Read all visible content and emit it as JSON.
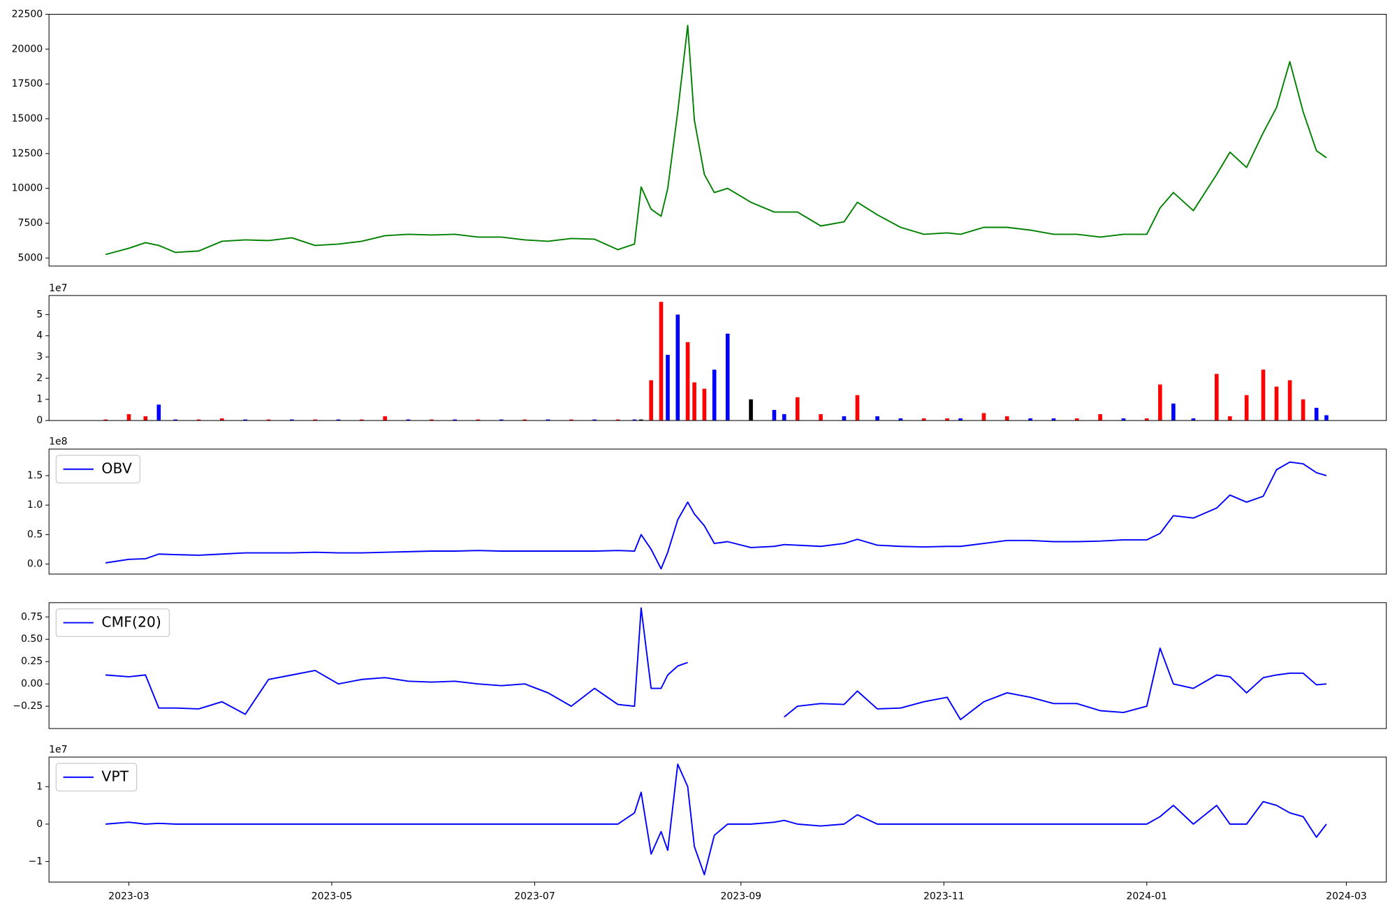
{
  "chart_data": [
    {
      "type": "line",
      "x": [
        "2023-02-22",
        "2023-03-01",
        "2023-03-06",
        "2023-03-10",
        "2023-03-15",
        "2023-03-22",
        "2023-03-29",
        "2023-04-05",
        "2023-04-12",
        "2023-04-19",
        "2023-04-26",
        "2023-05-03",
        "2023-05-10",
        "2023-05-17",
        "2023-05-24",
        "2023-05-31",
        "2023-06-07",
        "2023-06-14",
        "2023-06-21",
        "2023-06-28",
        "2023-07-05",
        "2023-07-12",
        "2023-07-19",
        "2023-07-26",
        "2023-07-31",
        "2023-08-02",
        "2023-08-05",
        "2023-08-08",
        "2023-08-10",
        "2023-08-13",
        "2023-08-16",
        "2023-08-18",
        "2023-08-21",
        "2023-08-24",
        "2023-08-28",
        "2023-09-04",
        "2023-09-11",
        "2023-09-14",
        "2023-09-18",
        "2023-09-25",
        "2023-10-02",
        "2023-10-06",
        "2023-10-12",
        "2023-10-19",
        "2023-10-26",
        "2023-11-02",
        "2023-11-06",
        "2023-11-13",
        "2023-11-20",
        "2023-11-27",
        "2023-12-04",
        "2023-12-11",
        "2023-12-18",
        "2023-12-25",
        "2024-01-01",
        "2024-01-05",
        "2024-01-09",
        "2024-01-15",
        "2024-01-22",
        "2024-01-26",
        "2024-01-31",
        "2024-02-05",
        "2024-02-09",
        "2024-02-13",
        "2024-02-17",
        "2024-02-21",
        "2024-02-24"
      ],
      "series": [
        {
          "color": "green",
          "values": [
            5250,
            5700,
            6100,
            5900,
            5400,
            5500,
            6200,
            6300,
            6250,
            6450,
            5900,
            6000,
            6200,
            6600,
            6700,
            6650,
            6700,
            6500,
            6500,
            6300,
            6200,
            6400,
            6350,
            5600,
            6000,
            10100,
            8500,
            8000,
            10000,
            15500,
            21700,
            14900,
            11000,
            9700,
            10000,
            9000,
            8300,
            8300,
            8300,
            7300,
            7600,
            9000,
            8100,
            7200,
            6700,
            6800,
            6700,
            7200,
            7200,
            7000,
            6700,
            6700,
            6500,
            6700,
            6700,
            8600,
            9700,
            8400,
            11000,
            12600,
            11500,
            14000,
            15800,
            19100,
            15500,
            12700,
            12200
          ]
        }
      ],
      "xlim": [
        "2023-02-05",
        "2024-03-13"
      ],
      "ylim": [
        4420,
        22500
      ],
      "yticks": [
        5000,
        7500,
        10000,
        12500,
        15000,
        17500,
        20000,
        22500
      ]
    },
    {
      "type": "bar",
      "x": [
        "2023-02-22",
        "2023-03-01",
        "2023-03-06",
        "2023-03-10",
        "2023-03-15",
        "2023-03-22",
        "2023-03-29",
        "2023-04-05",
        "2023-04-12",
        "2023-04-19",
        "2023-04-26",
        "2023-05-03",
        "2023-05-10",
        "2023-05-17",
        "2023-05-24",
        "2023-05-31",
        "2023-06-07",
        "2023-06-14",
        "2023-06-21",
        "2023-06-28",
        "2023-07-05",
        "2023-07-12",
        "2023-07-19",
        "2023-07-26",
        "2023-07-31",
        "2023-08-02",
        "2023-08-05",
        "2023-08-08",
        "2023-08-10",
        "2023-08-13",
        "2023-08-16",
        "2023-08-18",
        "2023-08-21",
        "2023-08-24",
        "2023-08-28",
        "2023-09-04",
        "2023-09-11",
        "2023-09-14",
        "2023-09-18",
        "2023-09-25",
        "2023-10-02",
        "2023-10-06",
        "2023-10-12",
        "2023-10-19",
        "2023-10-26",
        "2023-11-02",
        "2023-11-06",
        "2023-11-13",
        "2023-11-20",
        "2023-11-27",
        "2023-12-04",
        "2023-12-11",
        "2023-12-18",
        "2023-12-25",
        "2024-01-01",
        "2024-01-05",
        "2024-01-09",
        "2024-01-15",
        "2024-01-22",
        "2024-01-26",
        "2024-01-31",
        "2024-02-05",
        "2024-02-09",
        "2024-02-13",
        "2024-02-17",
        "2024-02-21",
        "2024-02-24"
      ],
      "values": [
        0.05,
        0.3,
        0.2,
        0.75,
        0.05,
        0.05,
        0.1,
        0.05,
        0.05,
        0.05,
        0.05,
        0.05,
        0.05,
        0.2,
        0.05,
        0.05,
        0.05,
        0.05,
        0.05,
        0.05,
        0.05,
        0.05,
        0.05,
        0.05,
        0.05,
        0.05,
        1.9,
        5.6,
        3.1,
        5.0,
        3.7,
        1.8,
        1.5,
        2.4,
        4.1,
        1.0,
        0.5,
        0.3,
        1.1,
        0.3,
        0.2,
        1.2,
        0.2,
        0.1,
        0.1,
        0.1,
        0.1,
        0.35,
        0.2,
        0.1,
        0.1,
        0.1,
        0.3,
        0.1,
        0.1,
        1.7,
        0.8,
        0.1,
        2.2,
        0.2,
        1.2,
        2.4,
        1.6,
        1.9,
        1.0,
        0.6,
        0.25
      ],
      "colors": [
        "red",
        "red",
        "red",
        "blue",
        "blue",
        "red",
        "red",
        "blue",
        "red",
        "blue",
        "red",
        "blue",
        "red",
        "red",
        "blue",
        "red",
        "blue",
        "red",
        "blue",
        "red",
        "blue",
        "red",
        "blue",
        "red",
        "blue",
        "black",
        "red",
        "red",
        "blue",
        "blue",
        "red",
        "red",
        "red",
        "blue",
        "blue",
        "black",
        "blue",
        "blue",
        "red",
        "red",
        "blue",
        "red",
        "blue",
        "blue",
        "red",
        "red",
        "blue",
        "red",
        "red",
        "blue",
        "blue",
        "red",
        "red",
        "blue",
        "red",
        "red",
        "blue",
        "blue",
        "red",
        "red",
        "red",
        "red",
        "red",
        "red",
        "red",
        "blue",
        "blue"
      ],
      "xlim": [
        "2023-02-05",
        "2024-03-13"
      ],
      "ylim": [
        0,
        5.9
      ],
      "yticks": [
        0,
        1,
        2,
        3,
        4,
        5
      ],
      "offset_label": "1e7"
    },
    {
      "type": "line",
      "x": [
        "2023-02-22",
        "2023-03-01",
        "2023-03-06",
        "2023-03-10",
        "2023-03-15",
        "2023-03-22",
        "2023-03-29",
        "2023-04-05",
        "2023-04-12",
        "2023-04-19",
        "2023-04-26",
        "2023-05-03",
        "2023-05-10",
        "2023-05-17",
        "2023-05-24",
        "2023-05-31",
        "2023-06-07",
        "2023-06-14",
        "2023-06-21",
        "2023-06-28",
        "2023-07-05",
        "2023-07-12",
        "2023-07-19",
        "2023-07-26",
        "2023-07-31",
        "2023-08-02",
        "2023-08-05",
        "2023-08-08",
        "2023-08-10",
        "2023-08-13",
        "2023-08-16",
        "2023-08-18",
        "2023-08-21",
        "2023-08-24",
        "2023-08-28",
        "2023-09-04",
        "2023-09-11",
        "2023-09-14",
        "2023-09-18",
        "2023-09-25",
        "2023-10-02",
        "2023-10-06",
        "2023-10-12",
        "2023-10-19",
        "2023-10-26",
        "2023-11-02",
        "2023-11-06",
        "2023-11-13",
        "2023-11-20",
        "2023-11-27",
        "2023-12-04",
        "2023-12-11",
        "2023-12-18",
        "2023-12-25",
        "2024-01-01",
        "2024-01-05",
        "2024-01-09",
        "2024-01-15",
        "2024-01-22",
        "2024-01-26",
        "2024-01-31",
        "2024-02-05",
        "2024-02-09",
        "2024-02-13",
        "2024-02-17",
        "2024-02-21",
        "2024-02-24"
      ],
      "series": [
        {
          "name": "OBV",
          "color": "blue",
          "values": [
            0.02,
            0.08,
            0.09,
            0.17,
            0.16,
            0.15,
            0.17,
            0.19,
            0.19,
            0.19,
            0.2,
            0.19,
            0.19,
            0.2,
            0.21,
            0.22,
            0.22,
            0.23,
            0.22,
            0.22,
            0.22,
            0.22,
            0.22,
            0.23,
            0.22,
            0.5,
            0.25,
            -0.08,
            0.2,
            0.75,
            1.05,
            0.85,
            0.65,
            0.35,
            0.38,
            0.28,
            0.3,
            0.33,
            0.32,
            0.3,
            0.35,
            0.42,
            0.32,
            0.3,
            0.29,
            0.3,
            0.3,
            0.35,
            0.4,
            0.4,
            0.38,
            0.38,
            0.39,
            0.41,
            0.41,
            0.52,
            0.82,
            0.78,
            0.95,
            1.17,
            1.05,
            1.15,
            1.6,
            1.73,
            1.7,
            1.55,
            1.5
          ]
        }
      ],
      "xlim": [
        "2023-02-05",
        "2024-03-13"
      ],
      "ylim": [
        -0.17,
        1.95
      ],
      "yticks": [
        {
          "value": 0,
          "label": "0.0"
        },
        0.5,
        {
          "value": 1,
          "label": "1.0"
        },
        1.5
      ],
      "offset_label": "1e8",
      "legend": "upper left"
    },
    {
      "type": "line",
      "x": [
        "2023-02-22",
        "2023-03-01",
        "2023-03-06",
        "2023-03-10",
        "2023-03-15",
        "2023-03-22",
        "2023-03-29",
        "2023-04-05",
        "2023-04-12",
        "2023-04-19",
        "2023-04-26",
        "2023-05-03",
        "2023-05-10",
        "2023-05-17",
        "2023-05-24",
        "2023-05-31",
        "2023-06-07",
        "2023-06-14",
        "2023-06-21",
        "2023-06-28",
        "2023-07-05",
        "2023-07-12",
        "2023-07-19",
        "2023-07-26",
        "2023-07-31",
        "2023-08-02",
        "2023-08-05",
        "2023-08-08",
        "2023-08-10",
        "2023-08-13",
        "2023-08-16",
        "2023-08-18",
        "2023-08-21",
        "2023-08-24",
        "2023-08-28",
        "2023-09-04",
        "2023-09-11",
        "2023-09-14",
        "2023-09-18",
        "2023-09-25",
        "2023-10-02",
        "2023-10-06",
        "2023-10-12",
        "2023-10-19",
        "2023-10-26",
        "2023-11-02",
        "2023-11-06",
        "2023-11-13",
        "2023-11-20",
        "2023-11-27",
        "2023-12-04",
        "2023-12-11",
        "2023-12-18",
        "2023-12-25",
        "2024-01-01",
        "2024-01-05",
        "2024-01-09",
        "2024-01-15",
        "2024-01-22",
        "2024-01-26",
        "2024-01-31",
        "2024-02-05",
        "2024-02-09",
        "2024-02-13",
        "2024-02-17",
        "2024-02-21",
        "2024-02-24"
      ],
      "series": [
        {
          "name": "CMF(20)",
          "color": "blue",
          "values": [
            0.1,
            0.08,
            0.1,
            -0.27,
            -0.27,
            -0.28,
            -0.2,
            -0.34,
            0.05,
            0.1,
            0.15,
            0.0,
            0.05,
            0.07,
            0.03,
            0.02,
            0.03,
            0.0,
            -0.02,
            0.0,
            -0.1,
            -0.25,
            -0.05,
            -0.23,
            -0.25,
            0.85,
            -0.05,
            -0.05,
            0.1,
            0.2,
            0.24,
            null,
            null,
            null,
            null,
            null,
            null,
            -0.37,
            -0.25,
            -0.22,
            -0.23,
            -0.08,
            -0.28,
            -0.27,
            -0.2,
            -0.15,
            -0.4,
            -0.2,
            -0.1,
            -0.15,
            -0.22,
            -0.22,
            -0.3,
            -0.32,
            -0.25,
            0.4,
            0.0,
            -0.05,
            0.1,
            0.08,
            -0.1,
            0.07,
            0.1,
            0.12,
            0.12,
            -0.01,
            0.0
          ]
        }
      ],
      "xlim": [
        "2023-02-05",
        "2024-03-13"
      ],
      "ylim": [
        -0.5,
        0.91
      ],
      "yticks": [
        {
          "value": -0.25,
          "label": "−0.25"
        },
        {
          "value": 0,
          "label": "0.00"
        },
        0.25,
        {
          "value": 0.5,
          "label": "0.50"
        },
        0.75
      ],
      "legend": "upper left"
    },
    {
      "type": "line",
      "x": [
        "2023-02-22",
        "2023-03-01",
        "2023-03-06",
        "2023-03-10",
        "2023-03-15",
        "2023-03-22",
        "2023-03-29",
        "2023-04-05",
        "2023-04-12",
        "2023-04-19",
        "2023-04-26",
        "2023-05-03",
        "2023-05-10",
        "2023-05-17",
        "2023-05-24",
        "2023-05-31",
        "2023-06-07",
        "2023-06-14",
        "2023-06-21",
        "2023-06-28",
        "2023-07-05",
        "2023-07-12",
        "2023-07-19",
        "2023-07-26",
        "2023-07-31",
        "2023-08-02",
        "2023-08-05",
        "2023-08-08",
        "2023-08-10",
        "2023-08-13",
        "2023-08-16",
        "2023-08-18",
        "2023-08-21",
        "2023-08-24",
        "2023-08-28",
        "2023-09-04",
        "2023-09-11",
        "2023-09-14",
        "2023-09-18",
        "2023-09-25",
        "2023-10-02",
        "2023-10-06",
        "2023-10-12",
        "2023-10-19",
        "2023-10-26",
        "2023-11-02",
        "2023-11-06",
        "2023-11-13",
        "2023-11-20",
        "2023-11-27",
        "2023-12-04",
        "2023-12-11",
        "2023-12-18",
        "2023-12-25",
        "2024-01-01",
        "2024-01-05",
        "2024-01-09",
        "2024-01-15",
        "2024-01-22",
        "2024-01-26",
        "2024-01-31",
        "2024-02-05",
        "2024-02-09",
        "2024-02-13",
        "2024-02-17",
        "2024-02-21",
        "2024-02-24"
      ],
      "series": [
        {
          "name": "VPT",
          "color": "blue",
          "values": [
            0,
            0.05,
            0,
            0.02,
            0,
            0,
            0,
            0,
            0,
            0,
            0,
            0,
            0,
            0,
            0,
            0,
            0,
            0,
            0,
            0,
            0,
            0,
            0,
            0,
            0.3,
            0.85,
            -0.8,
            -0.2,
            -0.7,
            1.6,
            1.0,
            -0.6,
            -1.35,
            -0.3,
            0,
            0,
            0.05,
            0.1,
            0,
            -0.05,
            0,
            0.25,
            0,
            0,
            0,
            0,
            0,
            0,
            0,
            0,
            0,
            0,
            0,
            0,
            0,
            0.2,
            0.5,
            0,
            0.5,
            0,
            0,
            0.6,
            0.5,
            0.3,
            0.2,
            -0.35,
            0
          ]
        }
      ],
      "xlim": [
        "2023-02-05",
        "2024-03-13"
      ],
      "ylim": [
        -1.55,
        1.79
      ],
      "yticks": [
        {
          "value": -1,
          "label": "−1"
        },
        0,
        1
      ],
      "offset_label": "1e7",
      "legend": "upper left",
      "xticks": [
        "2023-03",
        "2023-05",
        "2023-07",
        "2023-09",
        "2023-11",
        "2024-01",
        "2024-03"
      ]
    }
  ]
}
